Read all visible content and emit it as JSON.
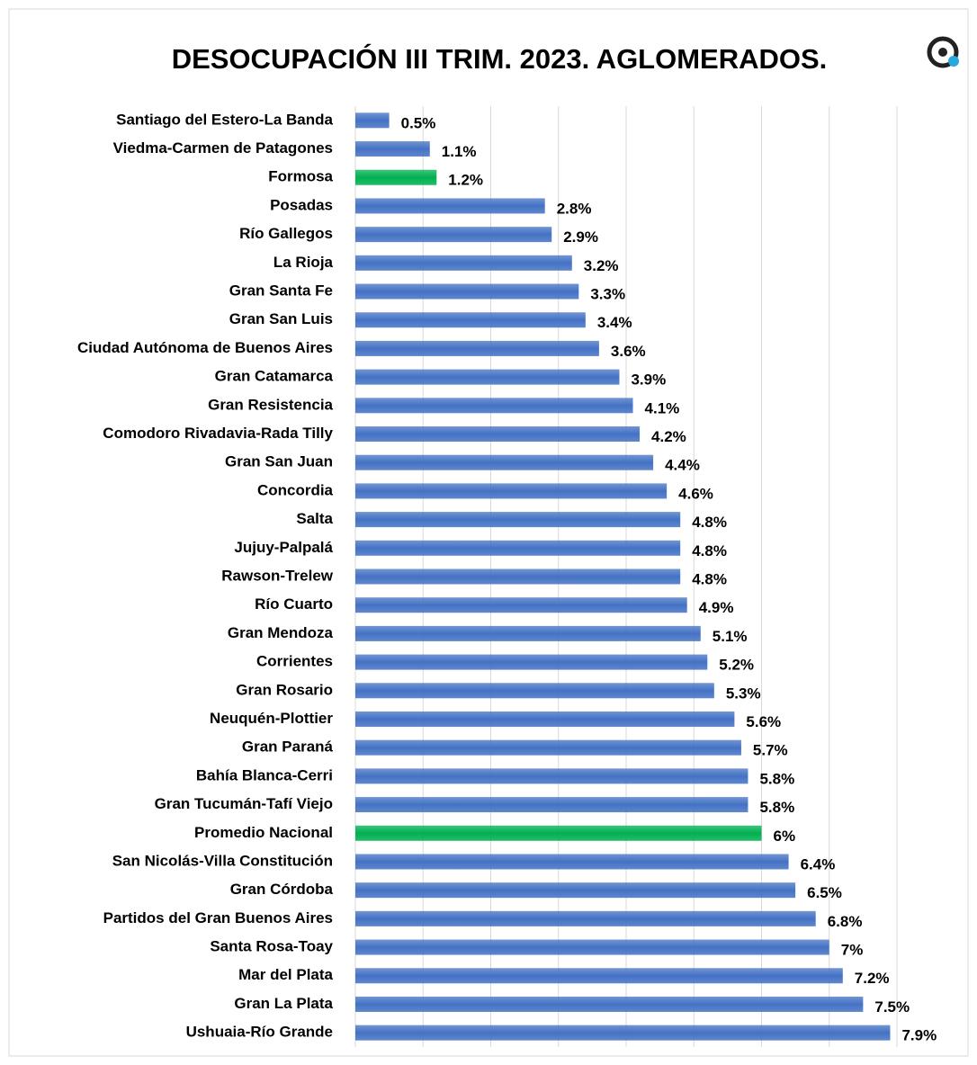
{
  "chart_data": {
    "type": "barh",
    "title": "DESOCUPACIÓN III TRIM. 2023. AGLOMERADOS.",
    "categories": [
      "Santiago del Estero-La Banda",
      "Viedma-Carmen de Patagones",
      "Formosa",
      "Posadas",
      "Río Gallegos",
      "La Rioja",
      "Gran Santa Fe",
      "Gran San Luis",
      "Ciudad Autónoma de Buenos Aires",
      "Gran Catamarca",
      "Gran Resistencia",
      "Comodoro Rivadavia-Rada Tilly",
      "Gran San Juan",
      "Concordia",
      "Salta",
      "Jujuy-Palpalá",
      "Rawson-Trelew",
      "Río Cuarto",
      "Gran Mendoza",
      "Corrientes",
      "Gran Rosario",
      "Neuquén-Plottier",
      "Gran Paraná",
      "Bahía Blanca-Cerri",
      "Gran Tucumán-Tafí Viejo",
      "Promedio Nacional",
      "San Nicolás-Villa Constitución",
      "Gran Córdoba",
      "Partidos del Gran Buenos Aires",
      "Santa Rosa-Toay",
      "Mar del Plata",
      "Gran La Plata",
      "Ushuaia-Río Grande"
    ],
    "values": [
      0.5,
      1.1,
      1.2,
      2.8,
      2.9,
      3.2,
      3.3,
      3.4,
      3.6,
      3.9,
      4.1,
      4.2,
      4.4,
      4.6,
      4.8,
      4.8,
      4.8,
      4.9,
      5.1,
      5.2,
      5.3,
      5.6,
      5.7,
      5.8,
      5.8,
      6,
      6.4,
      6.5,
      6.8,
      7,
      7.2,
      7.5,
      7.9
    ],
    "value_labels": [
      "0.5%",
      "1.1%",
      "1.2%",
      "2.8%",
      "2.9%",
      "3.2%",
      "3.3%",
      "3.4%",
      "3.6%",
      "3.9%",
      "4.1%",
      "4.2%",
      "4.4%",
      "4.6%",
      "4.8%",
      "4.8%",
      "4.8%",
      "4.9%",
      "5.1%",
      "5.2%",
      "5.3%",
      "5.6%",
      "5.7%",
      "5.8%",
      "5.8%",
      "6%",
      "6.4%",
      "6.5%",
      "6.8%",
      "7%",
      "7.2%",
      "7.5%",
      "7.9%"
    ],
    "colors": [
      "#4472c4",
      "#4472c4",
      "#00b050",
      "#4472c4",
      "#4472c4",
      "#4472c4",
      "#4472c4",
      "#4472c4",
      "#4472c4",
      "#4472c4",
      "#4472c4",
      "#4472c4",
      "#4472c4",
      "#4472c4",
      "#4472c4",
      "#4472c4",
      "#4472c4",
      "#4472c4",
      "#4472c4",
      "#4472c4",
      "#4472c4",
      "#4472c4",
      "#4472c4",
      "#4472c4",
      "#4472c4",
      "#00b050",
      "#4472c4",
      "#4472c4",
      "#4472c4",
      "#4472c4",
      "#4472c4",
      "#4472c4",
      "#4472c4"
    ],
    "xlim": [
      0,
      8
    ],
    "xticks": [
      0,
      1,
      2,
      3,
      4,
      5,
      6,
      7,
      8
    ],
    "grid": true
  }
}
